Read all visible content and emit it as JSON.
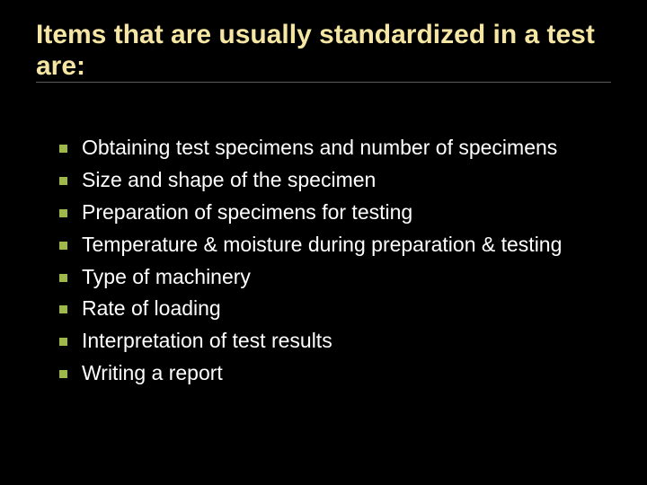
{
  "slide": {
    "title": "Items that are usually standardized in a test are:",
    "title_color": "#f5e6a3",
    "title_fontsize": 30,
    "background_color": "#000000",
    "divider_color": "#5a5a5a",
    "bullets": {
      "marker_color": "#9fb84a",
      "marker_size": 9,
      "text_color": "#ffffff",
      "text_fontsize": 23,
      "items": [
        "Obtaining test specimens and number of specimens",
        "Size and shape of the specimen",
        "Preparation of specimens for testing",
        "Temperature & moisture during preparation & testing",
        "Type of machinery",
        "Rate of loading",
        "Interpretation of test results",
        "Writing a report"
      ]
    }
  }
}
